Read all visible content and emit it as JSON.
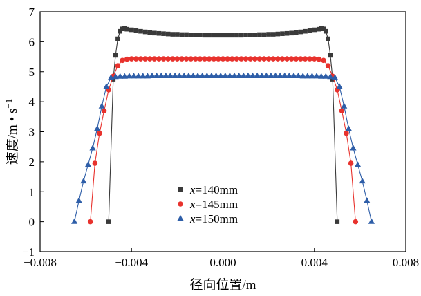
{
  "chart_data": {
    "type": "line",
    "xlabel": "径向位置/m",
    "ylabel_main": "速度/m • s",
    "ylabel_sup": "−1",
    "xlim": [
      -0.008,
      0.008
    ],
    "ylim": [
      -1,
      7
    ],
    "x_ticks": [
      {
        "value": -0.008,
        "label": "−0.008"
      },
      {
        "value": -0.004,
        "label": "−0.004"
      },
      {
        "value": 0.0,
        "label": "0.000"
      },
      {
        "value": 0.004,
        "label": "0.004"
      },
      {
        "value": 0.008,
        "label": "0.008"
      }
    ],
    "y_ticks": [
      {
        "value": -1,
        "label": "−1"
      },
      {
        "value": 0,
        "label": "0"
      },
      {
        "value": 1,
        "label": "1"
      },
      {
        "value": 2,
        "label": "2"
      },
      {
        "value": 3,
        "label": "3"
      },
      {
        "value": 4,
        "label": "4"
      },
      {
        "value": 5,
        "label": "5"
      },
      {
        "value": 6,
        "label": "6"
      },
      {
        "value": 7,
        "label": "7"
      }
    ],
    "legend_position": "lower-center",
    "series": [
      {
        "name": "x=140mm",
        "name_var": "x",
        "name_rest": "=140mm",
        "marker": "square",
        "color": "#3a3a3a",
        "x": [
          -0.005,
          -0.0048,
          -0.0047,
          -0.0046,
          -0.0045,
          -0.0044,
          -0.0043,
          -0.0042,
          -0.004,
          -0.0038,
          -0.0036,
          -0.0034,
          -0.0032,
          -0.003,
          -0.0028,
          -0.0026,
          -0.0024,
          -0.0022,
          -0.002,
          -0.0018,
          -0.0016,
          -0.0014,
          -0.0012,
          -0.001,
          -0.0008,
          -0.0006,
          -0.0004,
          -0.0002,
          0.0,
          0.0002,
          0.0004,
          0.0006,
          0.0008,
          0.001,
          0.0012,
          0.0014,
          0.0016,
          0.0018,
          0.002,
          0.0022,
          0.0024,
          0.0026,
          0.0028,
          0.003,
          0.0032,
          0.0034,
          0.0036,
          0.0038,
          0.004,
          0.0042,
          0.0043,
          0.0044,
          0.0045,
          0.0046,
          0.0047,
          0.0048,
          0.005
        ],
        "y": [
          0.0,
          4.75,
          5.55,
          6.1,
          6.35,
          6.43,
          6.44,
          6.42,
          6.4,
          6.37,
          6.35,
          6.33,
          6.31,
          6.29,
          6.28,
          6.27,
          6.26,
          6.25,
          6.25,
          6.24,
          6.24,
          6.23,
          6.23,
          6.23,
          6.22,
          6.22,
          6.22,
          6.22,
          6.22,
          6.22,
          6.22,
          6.22,
          6.22,
          6.23,
          6.23,
          6.23,
          6.24,
          6.24,
          6.25,
          6.25,
          6.26,
          6.27,
          6.28,
          6.29,
          6.31,
          6.33,
          6.35,
          6.37,
          6.4,
          6.42,
          6.44,
          6.43,
          6.35,
          6.1,
          5.55,
          4.75,
          0.0
        ]
      },
      {
        "name": "x=145mm",
        "name_var": "x",
        "name_rest": "=145mm",
        "marker": "circle",
        "color": "#e8322d",
        "x": [
          -0.0058,
          -0.0056,
          -0.0054,
          -0.0052,
          -0.005,
          -0.0048,
          -0.0046,
          -0.0044,
          -0.0042,
          -0.004,
          -0.0038,
          -0.0036,
          -0.0034,
          -0.0032,
          -0.003,
          -0.0028,
          -0.0026,
          -0.0024,
          -0.0022,
          -0.002,
          -0.0018,
          -0.0016,
          -0.0014,
          -0.0012,
          -0.001,
          -0.0008,
          -0.0006,
          -0.0004,
          -0.0002,
          0.0,
          0.0002,
          0.0004,
          0.0006,
          0.0008,
          0.001,
          0.0012,
          0.0014,
          0.0016,
          0.0018,
          0.002,
          0.0022,
          0.0024,
          0.0026,
          0.0028,
          0.003,
          0.0032,
          0.0034,
          0.0036,
          0.0038,
          0.004,
          0.0042,
          0.0044,
          0.0046,
          0.0048,
          0.005,
          0.0052,
          0.0054,
          0.0056,
          0.0058
        ],
        "y": [
          0.0,
          1.95,
          2.95,
          3.7,
          4.4,
          4.85,
          5.2,
          5.38,
          5.42,
          5.43,
          5.43,
          5.43,
          5.43,
          5.43,
          5.43,
          5.43,
          5.43,
          5.43,
          5.43,
          5.43,
          5.43,
          5.43,
          5.43,
          5.43,
          5.43,
          5.43,
          5.43,
          5.43,
          5.43,
          5.43,
          5.43,
          5.43,
          5.43,
          5.43,
          5.43,
          5.43,
          5.43,
          5.43,
          5.43,
          5.43,
          5.43,
          5.43,
          5.43,
          5.43,
          5.43,
          5.43,
          5.43,
          5.43,
          5.43,
          5.43,
          5.42,
          5.38,
          5.2,
          4.85,
          4.4,
          3.7,
          2.95,
          1.95,
          0.0
        ]
      },
      {
        "name": "x=150mm",
        "name_var": "x",
        "name_rest": "=150mm",
        "marker": "triangle",
        "color": "#2e5ea8",
        "x": [
          -0.0065,
          -0.0063,
          -0.0061,
          -0.0059,
          -0.0057,
          -0.0055,
          -0.0053,
          -0.0051,
          -0.0049,
          -0.0047,
          -0.0045,
          -0.0043,
          -0.0041,
          -0.0039,
          -0.0037,
          -0.0035,
          -0.0033,
          -0.0031,
          -0.0029,
          -0.0027,
          -0.0025,
          -0.0023,
          -0.0021,
          -0.0019,
          -0.0017,
          -0.0015,
          -0.0013,
          -0.0011,
          -0.0009,
          -0.0007,
          -0.0005,
          -0.0003,
          -0.0001,
          0.0001,
          0.0003,
          0.0005,
          0.0007,
          0.0009,
          0.0011,
          0.0013,
          0.0015,
          0.0017,
          0.0019,
          0.0021,
          0.0023,
          0.0025,
          0.0027,
          0.0029,
          0.0031,
          0.0033,
          0.0035,
          0.0037,
          0.0039,
          0.0041,
          0.0043,
          0.0045,
          0.0047,
          0.0049,
          0.0051,
          0.0053,
          0.0055,
          0.0057,
          0.0059,
          0.0061,
          0.0063,
          0.0065
        ],
        "y": [
          0.0,
          0.7,
          1.35,
          1.9,
          2.45,
          3.1,
          3.85,
          4.5,
          4.8,
          4.83,
          4.84,
          4.84,
          4.85,
          4.85,
          4.85,
          4.85,
          4.85,
          4.86,
          4.86,
          4.86,
          4.86,
          4.86,
          4.86,
          4.86,
          4.86,
          4.86,
          4.86,
          4.86,
          4.86,
          4.86,
          4.86,
          4.86,
          4.86,
          4.86,
          4.86,
          4.86,
          4.86,
          4.86,
          4.86,
          4.86,
          4.86,
          4.86,
          4.86,
          4.86,
          4.86,
          4.86,
          4.86,
          4.86,
          4.86,
          4.86,
          4.85,
          4.85,
          4.85,
          4.85,
          4.84,
          4.84,
          4.83,
          4.8,
          4.5,
          3.85,
          3.1,
          2.45,
          1.9,
          1.35,
          0.7,
          0.0
        ]
      }
    ]
  }
}
